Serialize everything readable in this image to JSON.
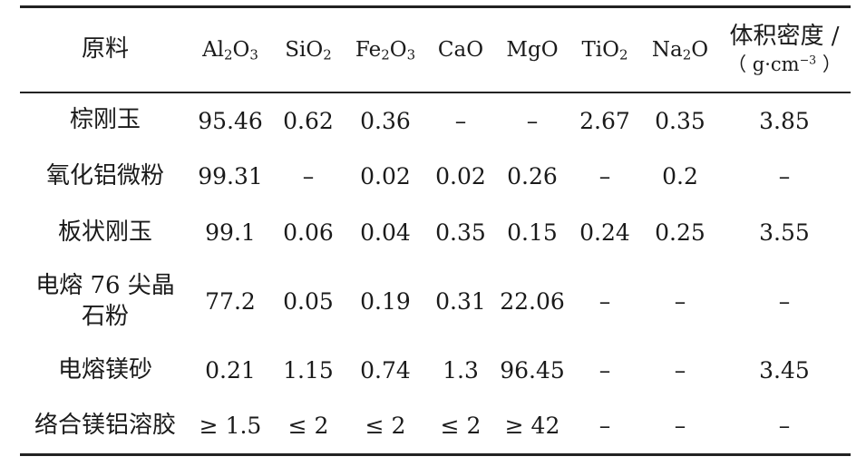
{
  "table": {
    "headers": {
      "material": "原料",
      "al": "Al",
      "al_sub1": "2",
      "al_o": "O",
      "al_sub2": "3",
      "si": "SiO",
      "si_sub": "2",
      "fe": "Fe",
      "fe_sub1": "2",
      "fe_o": "O",
      "fe_sub2": "3",
      "cao": "CaO",
      "mgo": "MgO",
      "ti": "TiO",
      "ti_sub": "2",
      "na": "Na",
      "na_sub": "2",
      "na_o": "O",
      "density_line1": "体积密度 /",
      "density_unit_a": "（ g·cm",
      "density_unit_sup": "−3",
      "density_unit_b": " ）"
    },
    "rows": [
      {
        "name_line1": "棕刚玉",
        "name_line2": "",
        "cells": [
          "95.46",
          "0.62",
          "0.36",
          "–",
          "–",
          "2.67",
          "0.35",
          "3.85"
        ]
      },
      {
        "name_line1": "氧化铝微粉",
        "name_line2": "",
        "cells": [
          "99.31",
          "–",
          "0.02",
          "0.02",
          "0.26",
          "–",
          "0.2",
          "–"
        ]
      },
      {
        "name_line1": "板状刚玉",
        "name_line2": "",
        "cells": [
          "99.1",
          "0.06",
          "0.04",
          "0.35",
          "0.15",
          "0.24",
          "0.25",
          "3.55"
        ]
      },
      {
        "name_line1": "电熔 76 尖晶",
        "name_line2": "石粉",
        "cells": [
          "77.2",
          "0.05",
          "0.19",
          "0.31",
          "22.06",
          "–",
          "–",
          "–"
        ]
      },
      {
        "name_line1": "电熔镁砂",
        "name_line2": "",
        "cells": [
          "0.21",
          "1.15",
          "0.74",
          "1.3",
          "96.45",
          "–",
          "–",
          "3.45"
        ]
      },
      {
        "name_line1": "络合镁铝溶胶",
        "name_line2": "",
        "cells": [
          "≥ 1.5",
          "≤ 2",
          "≤ 2",
          "≤ 2",
          "≥ 42",
          "–",
          "–",
          "–"
        ]
      }
    ]
  }
}
